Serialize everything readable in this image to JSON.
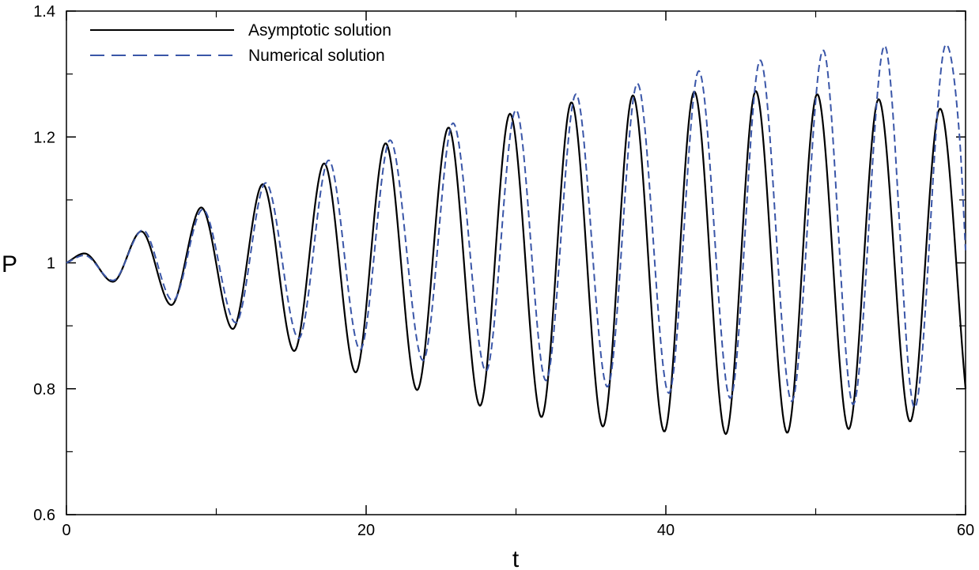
{
  "chart_data": {
    "type": "line",
    "title": "",
    "xlabel": "t",
    "ylabel": "P",
    "xlim": [
      0,
      60
    ],
    "ylim": [
      0.6,
      1.4
    ],
    "x_ticks": [
      0,
      20,
      40,
      60
    ],
    "x_tick_labels": [
      "0",
      "20",
      "40",
      "60"
    ],
    "y_ticks": [
      0.6,
      0.8,
      1,
      1.2,
      1.4
    ],
    "y_tick_labels": [
      "0.6",
      "0.8",
      "1",
      "1.2",
      "1.4"
    ],
    "y_minor_ticks": [
      0.7,
      0.9,
      1.1,
      1.3
    ],
    "x_minor_ticks": [
      10,
      30,
      50
    ],
    "grid": false,
    "legend_position": "top-left",
    "series": [
      {
        "name": "Asymptotic solution",
        "style": "solid",
        "color": "#000000",
        "x": [
          0,
          1.2,
          3.1,
          5.0,
          7.0,
          9.0,
          11.1,
          13.1,
          15.2,
          17.2,
          19.3,
          21.3,
          23.4,
          25.5,
          27.6,
          29.6,
          31.7,
          33.7,
          35.8,
          37.8,
          39.9,
          41.9,
          44.0,
          46.0,
          48.1,
          50.1,
          52.2,
          54.2,
          56.3,
          58.3,
          60.0
        ],
        "y": [
          1.0,
          1.015,
          0.97,
          1.05,
          0.933,
          1.088,
          0.895,
          1.125,
          0.86,
          1.158,
          0.826,
          1.19,
          0.798,
          1.215,
          0.773,
          1.237,
          0.755,
          1.255,
          0.74,
          1.266,
          0.732,
          1.272,
          0.728,
          1.273,
          0.73,
          1.268,
          0.736,
          1.26,
          0.748,
          1.245,
          0.8
        ]
      },
      {
        "name": "Numerical solution",
        "style": "dashed",
        "color": "#3a56a8",
        "x": [
          0,
          1.2,
          3.1,
          5.1,
          7.1,
          9.1,
          11.3,
          13.3,
          15.5,
          17.5,
          19.6,
          21.6,
          23.8,
          25.8,
          28.0,
          30.0,
          32.0,
          34.0,
          36.1,
          38.1,
          40.2,
          42.2,
          44.3,
          46.3,
          48.4,
          50.5,
          52.5,
          54.6,
          56.6,
          58.7,
          59.6,
          60.0
        ],
        "y": [
          1.0,
          1.012,
          0.972,
          1.052,
          0.94,
          1.085,
          0.905,
          1.127,
          0.88,
          1.163,
          0.862,
          1.195,
          0.845,
          1.222,
          0.828,
          1.243,
          0.813,
          1.268,
          0.803,
          1.285,
          0.793,
          1.305,
          0.785,
          1.322,
          0.78,
          1.338,
          0.775,
          1.345,
          0.77,
          1.347,
          1.2,
          1.02
        ]
      }
    ]
  }
}
